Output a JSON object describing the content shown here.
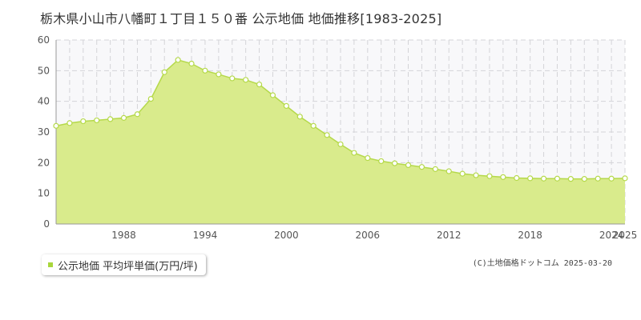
{
  "title": "栃木県小山市八幡町１丁目１５０番 公示地価 地価推移[1983-2025]",
  "legend": {
    "label": "公示地価 平均坪単価(万円/坪)"
  },
  "copyright": "(C)土地価格ドットコム 2025-03-20",
  "colors": {
    "fill": "#d9eb8c",
    "line": "#b5d94a",
    "marker_stroke": "#b5d94a",
    "marker_fill": "#ffffff",
    "plot_bg": "#f8f8fa",
    "grid": "#d4d4d8",
    "axis": "#999999",
    "legend_marker": "#a8d63c"
  },
  "chart_data": {
    "type": "area",
    "title": "栃木県小山市八幡町１丁目１５０番 公示地価 地価推移[1983-2025]",
    "xlabel": "",
    "ylabel": "",
    "xlim": [
      1983,
      2025
    ],
    "ylim": [
      0,
      60
    ],
    "y_ticks": [
      "0",
      "10",
      "20",
      "30",
      "40",
      "50",
      "60"
    ],
    "x_tick_labels": [
      "1988",
      "1994",
      "2000",
      "2006",
      "2012",
      "2018",
      "2024",
      "2025"
    ],
    "grid": true,
    "legend_position": "bottom-left",
    "series": [
      {
        "name": "公示地価 平均坪単価(万円/坪)",
        "x": [
          1983,
          1984,
          1985,
          1986,
          1987,
          1988,
          1989,
          1990,
          1991,
          1992,
          1993,
          1994,
          1995,
          1996,
          1997,
          1998,
          1999,
          2000,
          2001,
          2002,
          2003,
          2004,
          2005,
          2006,
          2007,
          2008,
          2009,
          2010,
          2011,
          2012,
          2013,
          2014,
          2015,
          2016,
          2017,
          2018,
          2019,
          2020,
          2021,
          2022,
          2023,
          2024,
          2025
        ],
        "values": [
          32.0,
          32.9,
          33.5,
          33.8,
          34.2,
          34.6,
          35.8,
          40.8,
          49.5,
          53.5,
          52.3,
          50.0,
          48.8,
          47.5,
          47.0,
          45.5,
          42.0,
          38.5,
          35.0,
          32.0,
          29.0,
          26.0,
          23.2,
          21.5,
          20.5,
          19.8,
          19.2,
          18.6,
          17.9,
          17.2,
          16.4,
          15.9,
          15.6,
          15.3,
          15.0,
          14.9,
          14.8,
          14.8,
          14.7,
          14.7,
          14.8,
          14.8,
          14.9
        ]
      }
    ]
  }
}
